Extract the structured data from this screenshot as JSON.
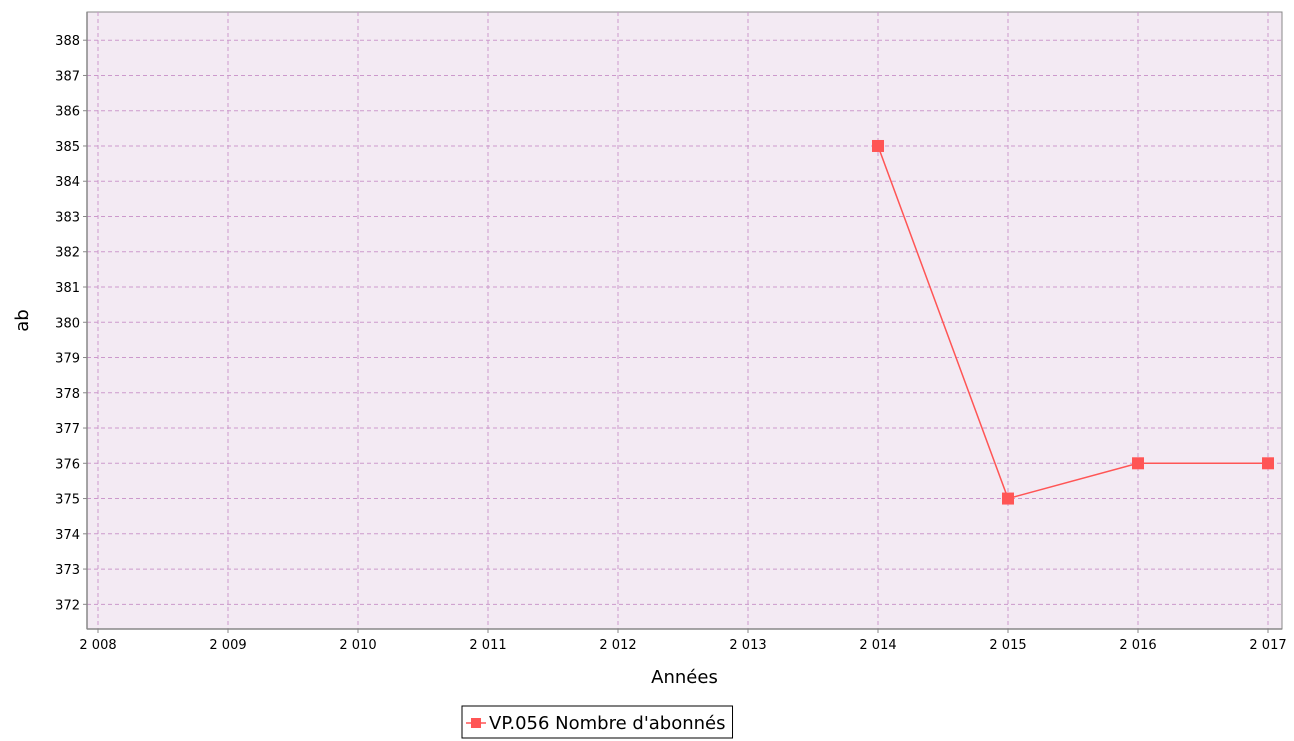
{
  "chart_data": {
    "type": "line",
    "xlabel": "Années",
    "ylabel": "ab",
    "xlim": [
      2008,
      2017
    ],
    "ylim": [
      371.3,
      388.8
    ],
    "grid": true,
    "legend_position": "bottom",
    "x_ticks": [
      {
        "value": 2008,
        "label": "2 008"
      },
      {
        "value": 2009,
        "label": "2 009"
      },
      {
        "value": 2010,
        "label": "2 010"
      },
      {
        "value": 2011,
        "label": "2 011"
      },
      {
        "value": 2012,
        "label": "2 012"
      },
      {
        "value": 2013,
        "label": "2 013"
      },
      {
        "value": 2014,
        "label": "2 014"
      },
      {
        "value": 2015,
        "label": "2 015"
      },
      {
        "value": 2016,
        "label": "2 016"
      },
      {
        "value": 2017,
        "label": "2 017"
      }
    ],
    "y_ticks": [
      372,
      373,
      374,
      375,
      376,
      377,
      378,
      379,
      380,
      381,
      382,
      383,
      384,
      385,
      386,
      387,
      388
    ],
    "series": [
      {
        "name": "VP.056 Nombre d'abonnés",
        "color": "#ff5555",
        "marker": "square",
        "points": [
          {
            "x": 2014,
            "y": 385
          },
          {
            "x": 2015,
            "y": 375
          },
          {
            "x": 2016,
            "y": 376
          },
          {
            "x": 2017,
            "y": 376
          }
        ]
      }
    ],
    "colors": {
      "plot_background": "#f3eaf3",
      "grid": "#cc99cc",
      "axis": "#888888"
    }
  }
}
